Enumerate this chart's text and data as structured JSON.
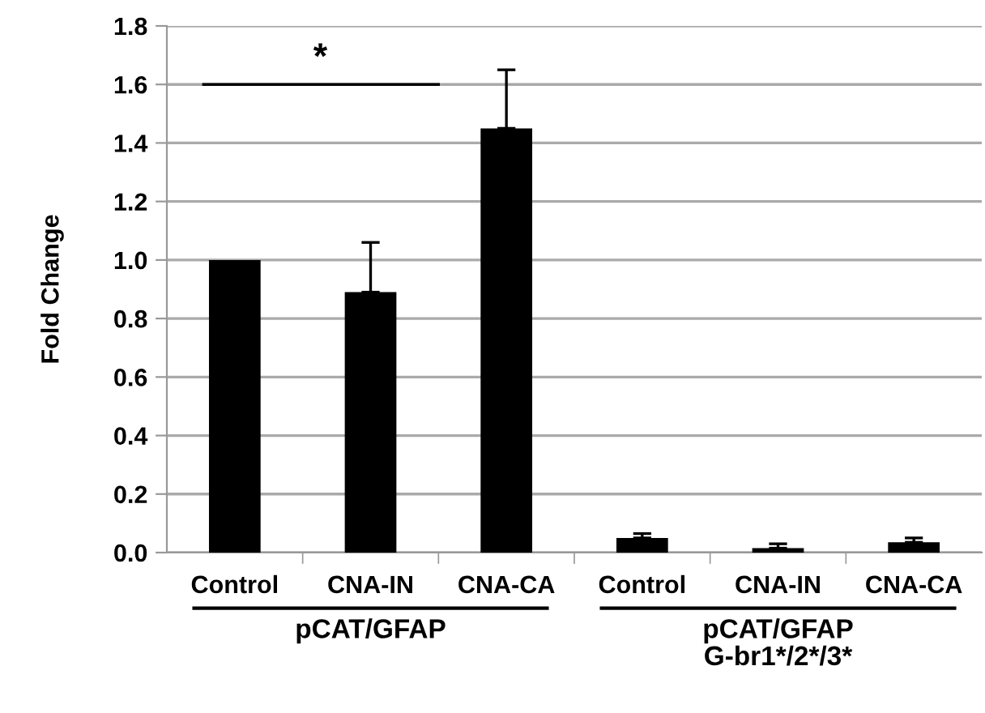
{
  "chart_data": {
    "type": "bar",
    "ylabel": "Fold Change",
    "categories": [
      "Control",
      "CNA-IN",
      "CNA-CA",
      "Control",
      "CNA-IN",
      "CNA-CA"
    ],
    "values": [
      1.0,
      0.89,
      1.45,
      0.05,
      0.015,
      0.035
    ],
    "errors": [
      null,
      [
        0.89,
        1.06
      ],
      [
        1.45,
        1.65
      ],
      [
        0.05,
        0.065
      ],
      [
        0.015,
        0.03
      ],
      [
        0.035,
        0.05
      ]
    ],
    "color": "#000000",
    "ylim": [
      0,
      1.8
    ],
    "yticks": [
      {
        "value": 0,
        "label": "0.0"
      },
      {
        "value": 0.2,
        "label": "0.2"
      },
      {
        "value": 0.4,
        "label": "0.4"
      },
      {
        "value": 0.6,
        "label": "0.6"
      },
      {
        "value": 0.8,
        "label": "0.8"
      },
      {
        "value": 1.0,
        "label": "1.0"
      },
      {
        "value": 1.2,
        "label": "1.2"
      },
      {
        "value": 1.4,
        "label": "1.4"
      },
      {
        "value": 1.6,
        "label": "1.6"
      },
      {
        "value": 1.8,
        "label": "1.8"
      }
    ],
    "grid": "y",
    "annotations": [
      "*",
      "pCAT/GFAP",
      "pCAT/GFAP\nG-br1*/2*/3*"
    ]
  }
}
